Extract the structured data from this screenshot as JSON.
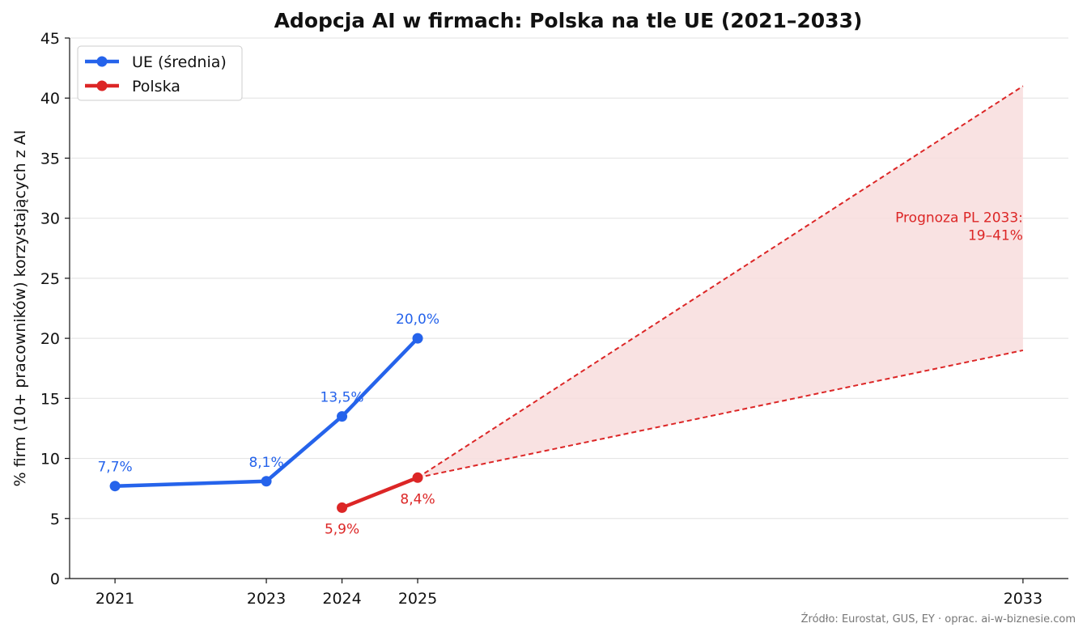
{
  "chart_data": {
    "type": "line",
    "title": "Adopcja AI w firmach: Polska na tle UE (2021–2033)",
    "xlabel": "",
    "ylabel": "% firm (10+ pracowników) korzystających z AI",
    "xlim": [
      2020.4,
      2033.6
    ],
    "ylim": [
      0,
      45
    ],
    "xticks": [
      2021,
      2023,
      2024,
      2025,
      2033
    ],
    "yticks": [
      0,
      5,
      10,
      15,
      20,
      25,
      30,
      35,
      40,
      45
    ],
    "grid": "horizontal",
    "legend_position": "top-left",
    "series": [
      {
        "name": "UE (średnia)",
        "color": "#2563eb",
        "x": [
          2021,
          2023,
          2024,
          2025
        ],
        "y": [
          7.7,
          8.1,
          13.5,
          20.0
        ],
        "labels": [
          "7,7%",
          "8,1%",
          "13,5%",
          "20,0%"
        ]
      },
      {
        "name": "Polska",
        "color": "#dc2626",
        "x": [
          2024,
          2025
        ],
        "y": [
          5.9,
          8.4
        ],
        "labels": [
          "5,9%",
          "8,4%"
        ]
      }
    ],
    "forecast": {
      "color": "#dc2626",
      "fill_color": "#f8dddd",
      "x": [
        2025,
        2033
      ],
      "lower": [
        8.4,
        19
      ],
      "upper": [
        8.4,
        41
      ],
      "annotation": [
        "Prognoza PL 2033:",
        "19–41%"
      ]
    },
    "source": "Źródło: Eurostat, GUS, EY · oprac. ai-w-biznesie.com"
  }
}
